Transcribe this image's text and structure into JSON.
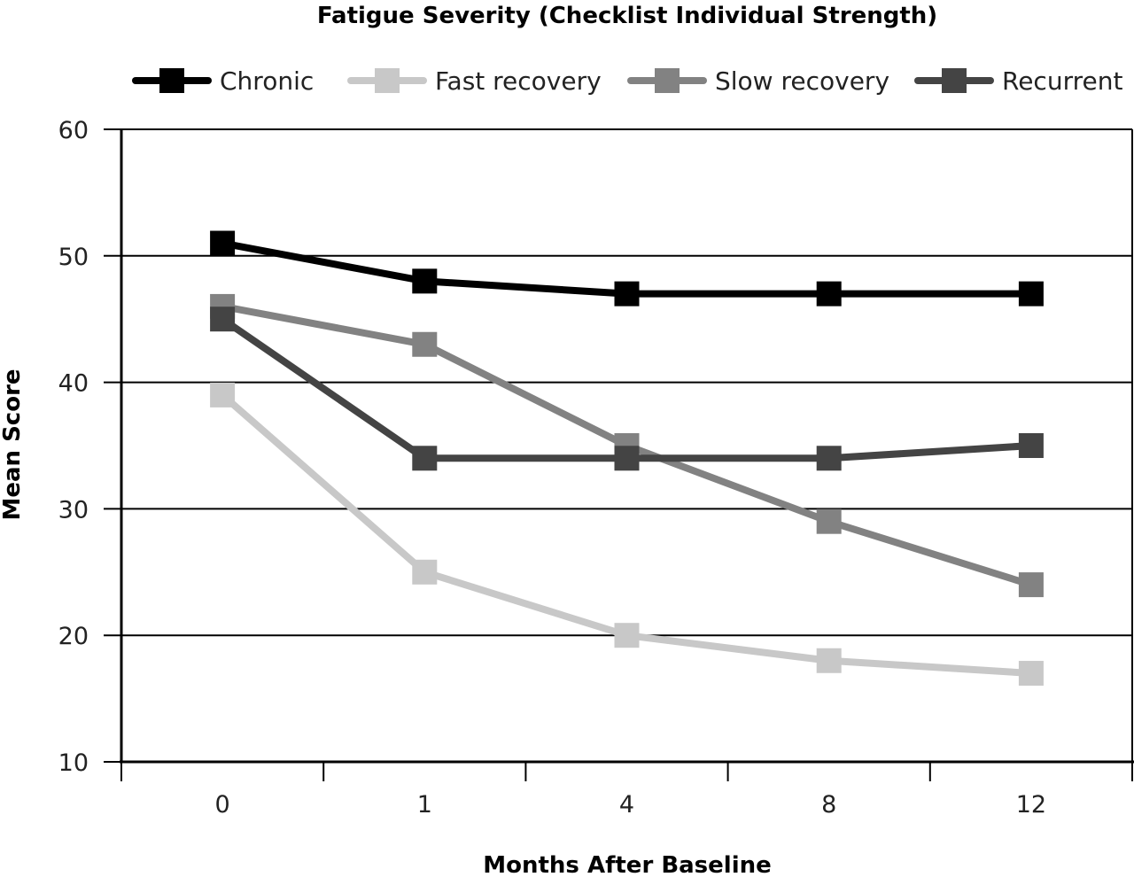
{
  "chart_data": {
    "type": "line",
    "title": "Fatigue Severity (Checklist Individual Strength)",
    "xlabel": "Months After Baseline",
    "ylabel": "Mean Score",
    "categories": [
      "0",
      "1",
      "4",
      "8",
      "12"
    ],
    "ylim": [
      10,
      60
    ],
    "yticks": [
      10,
      20,
      30,
      40,
      50,
      60
    ],
    "grid": true,
    "legend_position": "top",
    "series": [
      {
        "name": "Chronic",
        "color": "#000000",
        "values": [
          51,
          48,
          47,
          47,
          47
        ]
      },
      {
        "name": "Fast recovery",
        "color": "#c8c8c8",
        "values": [
          39,
          25,
          20,
          18,
          17
        ]
      },
      {
        "name": "Slow recovery",
        "color": "#828282",
        "values": [
          46,
          43,
          35,
          29,
          24
        ]
      },
      {
        "name": "Recurrent",
        "color": "#444444",
        "values": [
          45,
          34,
          34,
          34,
          35
        ]
      }
    ]
  }
}
